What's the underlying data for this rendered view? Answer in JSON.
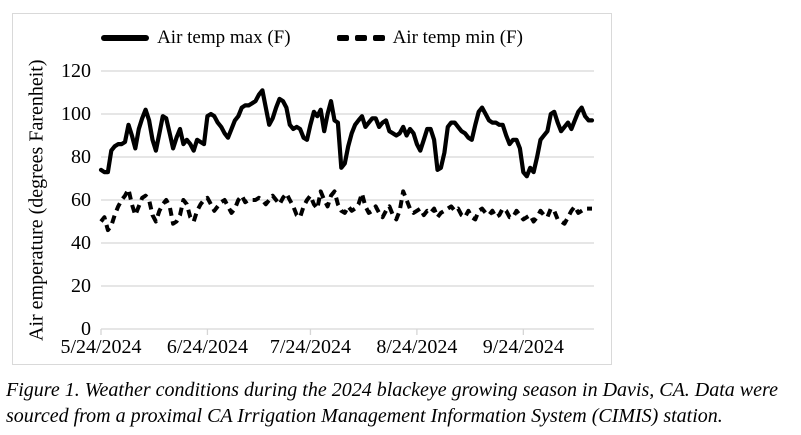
{
  "chart_data": {
    "type": "line",
    "title": "",
    "xlabel": "",
    "ylabel": "Air emperature (degrees Farenheit)",
    "ylim": [
      0,
      120
    ],
    "yticks": [
      0,
      20,
      40,
      60,
      80,
      100,
      120
    ],
    "x_tick_labels": [
      "5/24/2024",
      "6/24/2024",
      "7/24/2024",
      "8/24/2024",
      "9/24/2024"
    ],
    "x_tick_days": [
      0,
      31,
      61,
      92,
      123
    ],
    "x_domain_days": [
      0,
      143
    ],
    "x_start_date": "5/24/2024",
    "grid": "horizontal",
    "legend_position": "top-center",
    "series": [
      {
        "name": "Air temp max (F)",
        "style": "solid",
        "color": "#000000",
        "values": [
          74,
          73,
          73,
          83,
          85,
          86,
          86,
          87,
          95,
          90,
          84,
          93,
          98,
          102,
          97,
          88,
          83,
          91,
          99,
          98,
          91,
          84,
          89,
          93,
          86,
          88,
          86,
          83,
          88,
          87,
          86,
          99,
          100,
          99,
          96,
          94,
          91,
          89,
          93,
          97,
          99,
          103,
          104,
          104,
          105,
          106,
          109,
          111,
          103,
          95,
          98,
          103,
          107,
          106,
          103,
          95,
          93,
          94,
          93,
          89,
          88,
          95,
          101,
          99,
          102,
          92,
          100,
          106,
          97,
          96,
          75,
          77,
          85,
          91,
          95,
          97,
          99,
          94,
          96,
          98,
          98,
          94,
          96,
          97,
          92,
          91,
          90,
          91,
          94,
          90,
          93,
          91,
          86,
          83,
          88,
          93,
          93,
          88,
          74,
          75,
          82,
          94,
          96,
          96,
          94,
          92,
          91,
          89,
          88,
          95,
          101,
          103,
          100,
          97,
          96,
          96,
          95,
          95,
          90,
          86,
          88,
          88,
          84,
          73,
          71,
          75,
          73,
          80,
          88,
          90,
          92,
          100,
          101,
          96,
          92,
          94,
          96,
          93,
          97,
          101,
          103,
          99,
          97,
          97
        ]
      },
      {
        "name": "Air temp min (F)",
        "style": "dashed",
        "color": "#000000",
        "values": [
          50,
          52,
          46,
          48,
          53,
          57,
          60,
          62,
          65,
          58,
          53,
          57,
          61,
          62,
          60,
          53,
          50,
          55,
          58,
          60,
          57,
          49,
          50,
          53,
          60,
          58,
          52,
          50,
          55,
          58,
          60,
          61,
          58,
          55,
          57,
          59,
          60,
          57,
          54,
          56,
          60,
          62,
          59,
          60,
          60,
          60,
          61,
          60,
          58,
          60,
          62,
          60,
          58,
          61,
          63,
          60,
          57,
          53,
          52,
          57,
          60,
          62,
          58,
          56,
          64,
          60,
          57,
          62,
          64,
          58,
          55,
          54,
          57,
          55,
          56,
          58,
          63,
          57,
          54,
          55,
          57,
          54,
          52,
          55,
          57,
          53,
          51,
          55,
          64,
          60,
          56,
          54,
          55,
          56,
          53,
          55,
          54,
          56,
          52,
          54,
          55,
          56,
          57,
          55,
          56,
          53,
          52,
          55,
          52,
          51,
          55,
          56,
          54,
          53,
          55,
          52,
          53,
          56,
          55,
          52,
          52,
          55,
          53,
          51,
          52,
          53,
          50,
          52,
          55,
          53,
          52,
          56,
          55,
          51,
          50,
          49,
          52,
          55,
          57,
          54,
          55,
          56,
          56,
          56
        ]
      }
    ]
  },
  "caption": {
    "line1": "Figure 1. Weather conditions during the 2024 blackeye growing season in Davis, CA. Data were",
    "line2": "sourced from a proximal CA Irrigation Management Information System (CIMIS) station."
  },
  "colors": {
    "line": "#000000",
    "grid": "#d6d6d6",
    "border": "#d9d9d9",
    "text": "#000000",
    "background": "#ffffff"
  }
}
